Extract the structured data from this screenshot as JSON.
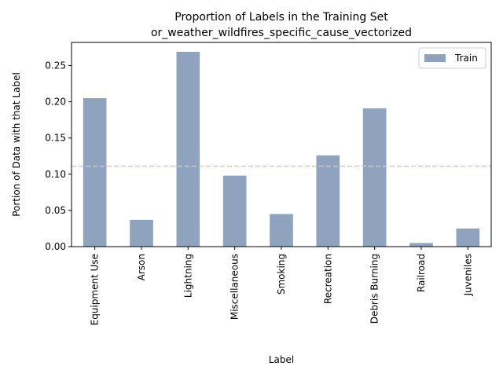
{
  "chart_data": {
    "type": "bar",
    "title_line1": "Proportion of Labels in the Training Set",
    "title_line2": "or_weather_wildfires_specific_cause_vectorized",
    "xlabel": "Label",
    "ylabel": "Portion of Data with that Label",
    "categories": [
      "Equipment Use",
      "Arson",
      "Lightning",
      "Miscellaneous",
      "Smoking",
      "Recreation",
      "Debris Burning",
      "Railroad",
      "Juveniles"
    ],
    "series": [
      {
        "name": "Train",
        "values": [
          0.205,
          0.037,
          0.269,
          0.098,
          0.045,
          0.126,
          0.191,
          0.005,
          0.025
        ]
      }
    ],
    "yticks": [
      "0.00",
      "0.05",
      "0.10",
      "0.15",
      "0.20",
      "0.25"
    ],
    "ylim": [
      0,
      0.282
    ],
    "reference_line": 0.111,
    "legend_position": "top-right",
    "colors": {
      "bar": "#8fa3bf",
      "reference_line": "#d9c6b4"
    }
  }
}
